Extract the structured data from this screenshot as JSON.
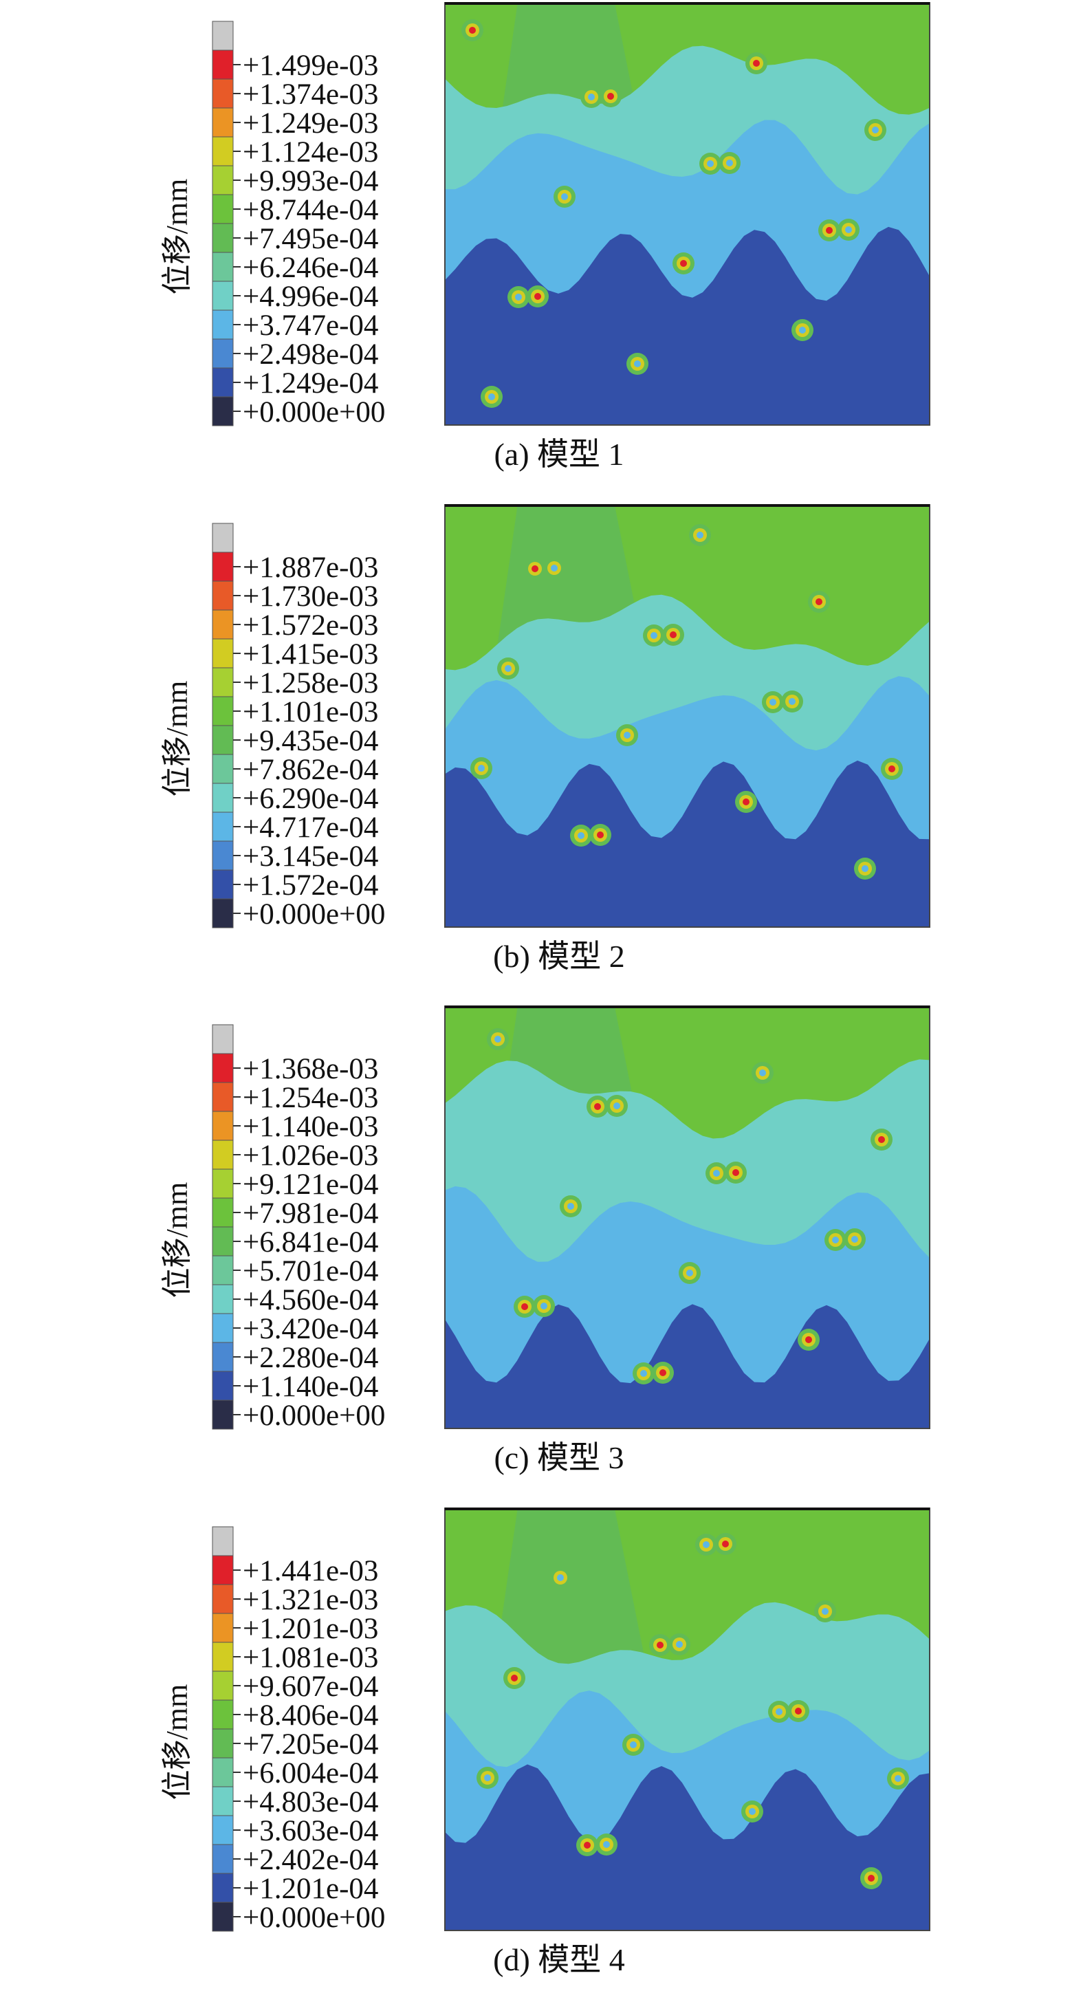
{
  "colormap": [
    "#c9c9c9",
    "#e0202a",
    "#e85a28",
    "#eb9424",
    "#d2cc22",
    "#a6d032",
    "#6cc23c",
    "#62bb54",
    "#6cc79a",
    "#70d0c6",
    "#5cb6e6",
    "#4a88d2",
    "#3350a8",
    "#2a2d48"
  ],
  "panels": [
    {
      "axis_label": "位移/mm",
      "caption": "(a) 模型 1",
      "legend": [
        "+1.499e-03",
        "+1.374e-03",
        "+1.249e-03",
        "+1.124e-03",
        "+9.993e-04",
        "+8.744e-04",
        "+7.495e-04",
        "+6.246e-04",
        "+4.996e-04",
        "+3.747e-04",
        "+2.498e-04",
        "+1.249e-04",
        "+0.000e+00"
      ]
    },
    {
      "axis_label": "位移/mm",
      "caption": "(b) 模型 2",
      "legend": [
        "+1.887e-03",
        "+1.730e-03",
        "+1.572e-03",
        "+1.415e-03",
        "+1.258e-03",
        "+1.101e-03",
        "+9.435e-04",
        "+7.862e-04",
        "+6.290e-04",
        "+4.717e-04",
        "+3.145e-04",
        "+1.572e-04",
        "+0.000e+00"
      ]
    },
    {
      "axis_label": "位移/mm",
      "caption": "(c) 模型 3",
      "legend": [
        "+1.368e-03",
        "+1.254e-03",
        "+1.140e-03",
        "+1.026e-03",
        "+9.121e-04",
        "+7.981e-04",
        "+6.841e-04",
        "+5.701e-04",
        "+4.560e-04",
        "+3.420e-04",
        "+2.280e-04",
        "+1.140e-04",
        "+0.000e+00"
      ]
    },
    {
      "axis_label": "位移/mm",
      "caption": "(d) 模型 4",
      "legend": [
        "+1.441e-03",
        "+1.321e-03",
        "+1.201e-03",
        "+1.081e-03",
        "+9.607e-04",
        "+8.406e-04",
        "+7.205e-04",
        "+6.004e-04",
        "+4.803e-04",
        "+3.603e-04",
        "+2.402e-04",
        "+1.201e-04",
        "+0.000e+00"
      ]
    }
  ]
}
